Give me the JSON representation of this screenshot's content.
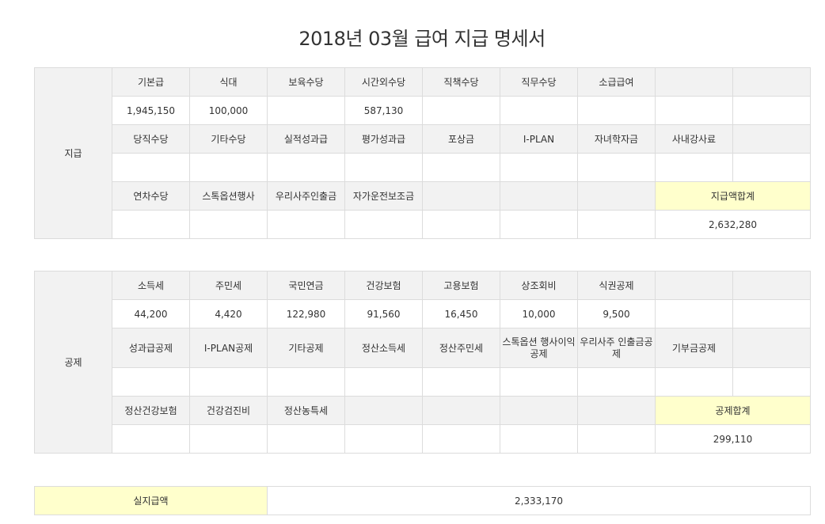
{
  "title": "2018년 03월 급여 지급 명세서",
  "payment": {
    "section_label": "지급",
    "row1_headers": [
      "기본급",
      "식대",
      "보육수당",
      "시간외수당",
      "직책수당",
      "직무수당",
      "소급급여",
      "",
      ""
    ],
    "row1_values": [
      "1,945,150",
      "100,000",
      "",
      "587,130",
      "",
      "",
      "",
      "",
      ""
    ],
    "row2_headers": [
      "당직수당",
      "기타수당",
      "실적성과급",
      "평가성과급",
      "포상금",
      "I-PLAN",
      "자녀학자금",
      "사내강사료",
      ""
    ],
    "row2_values": [
      "",
      "",
      "",
      "",
      "",
      "",
      "",
      "",
      ""
    ],
    "row3_headers": [
      "연차수당",
      "스톡옵션행사",
      "우리사주인출금",
      "자가운전보조금",
      "",
      "",
      ""
    ],
    "row3_values": [
      "",
      "",
      "",
      "",
      "",
      "",
      ""
    ],
    "total_label": "지급액합계",
    "total_value": "2,632,280"
  },
  "deduction": {
    "section_label": "공제",
    "row1_headers": [
      "소득세",
      "주민세",
      "국민연금",
      "건강보험",
      "고용보험",
      "상조회비",
      "식권공제",
      "",
      ""
    ],
    "row1_values": [
      "44,200",
      "4,420",
      "122,980",
      "91,560",
      "16,450",
      "10,000",
      "9,500",
      "",
      ""
    ],
    "row2_headers": [
      "성과급공제",
      "I-PLAN공제",
      "기타공제",
      "정산소득세",
      "정산주민세",
      "스톡옵션\n행사이익공제",
      "우리사주\n인출금공제",
      "기부금공제",
      ""
    ],
    "row2_values": [
      "",
      "",
      "",
      "",
      "",
      "",
      "",
      "",
      ""
    ],
    "row3_headers": [
      "정산건강보험",
      "건강검진비",
      "정산농특세",
      "",
      "",
      "",
      ""
    ],
    "row3_values": [
      "",
      "",
      "",
      "",
      "",
      "",
      ""
    ],
    "total_label": "공제합계",
    "total_value": "299,110"
  },
  "net": {
    "label": "실지급액",
    "value": "2,333,170"
  }
}
